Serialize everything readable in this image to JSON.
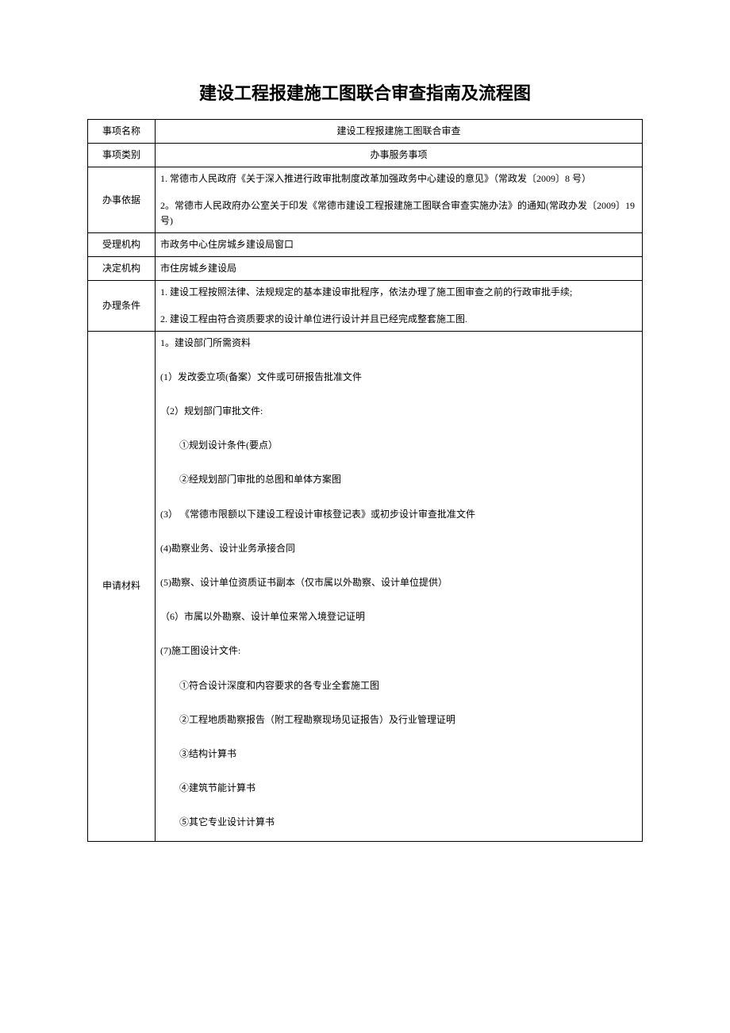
{
  "title": "建设工程报建施工图联合审查指南及流程图",
  "rows": {
    "item_name": {
      "label": "事项名称",
      "value": "建设工程报建施工图联合审查"
    },
    "item_category": {
      "label": "事项类别",
      "value": "办事服务事项"
    },
    "basis": {
      "label": "办事依据",
      "p1": "1. 常德市人民政府《关于深入推进行政审批制度改革加强政务中心建设的意见》（常政发〔2009〕8 号）",
      "p2": "2。常德市人民政府办公室关于印发《常德市建设工程报建施工图联合审查实施办法》的通知(常政办发〔2009〕19 号)"
    },
    "accept_org": {
      "label": "受理机构",
      "value": "市政务中心住房城乡建设局窗口"
    },
    "decide_org": {
      "label": "决定机构",
      "value": "市住房城乡建设局"
    },
    "conditions": {
      "label": "办理条件",
      "p1": "1. 建设工程按照法律、法规规定的基本建设审批程序，依法办理了施工图审查之前的行政审批手续;",
      "p2": "2. 建设工程由符合资质要求的设计单位进行设计并且已经完成整套施工图."
    },
    "materials": {
      "label": "申请材料",
      "m1": "1。建设部门所需资料",
      "m2": "(1）发改委立项(备案）文件或可研报告批准文件",
      "m3": "（2）规划部门审批文件:",
      "m3a": "①规划设计条件(要点）",
      "m3b": "②经规划部门审批的总图和单体方案图",
      "m4": "(3） 《常德市限额以下建设工程设计审核登记表》或初步设计审查批准文件",
      "m5": "(4)勘察业务、设计业务承接合同",
      "m6": "(5)勘察、设计单位资质证书副本（仅市属以外勘察、设计单位提供）",
      "m7": "（6）市属以外勘察、设计单位来常入境登记证明",
      "m8": "(7)施工图设计文件:",
      "m8a": "①符合设计深度和内容要求的各专业全套施工图",
      "m8b": "②工程地质勘察报告（附工程勘察现场见证报告）及行业管理证明",
      "m8c": "③结构计算书",
      "m8d": "④建筑节能计算书",
      "m8e": "⑤其它专业设计计算书"
    }
  }
}
